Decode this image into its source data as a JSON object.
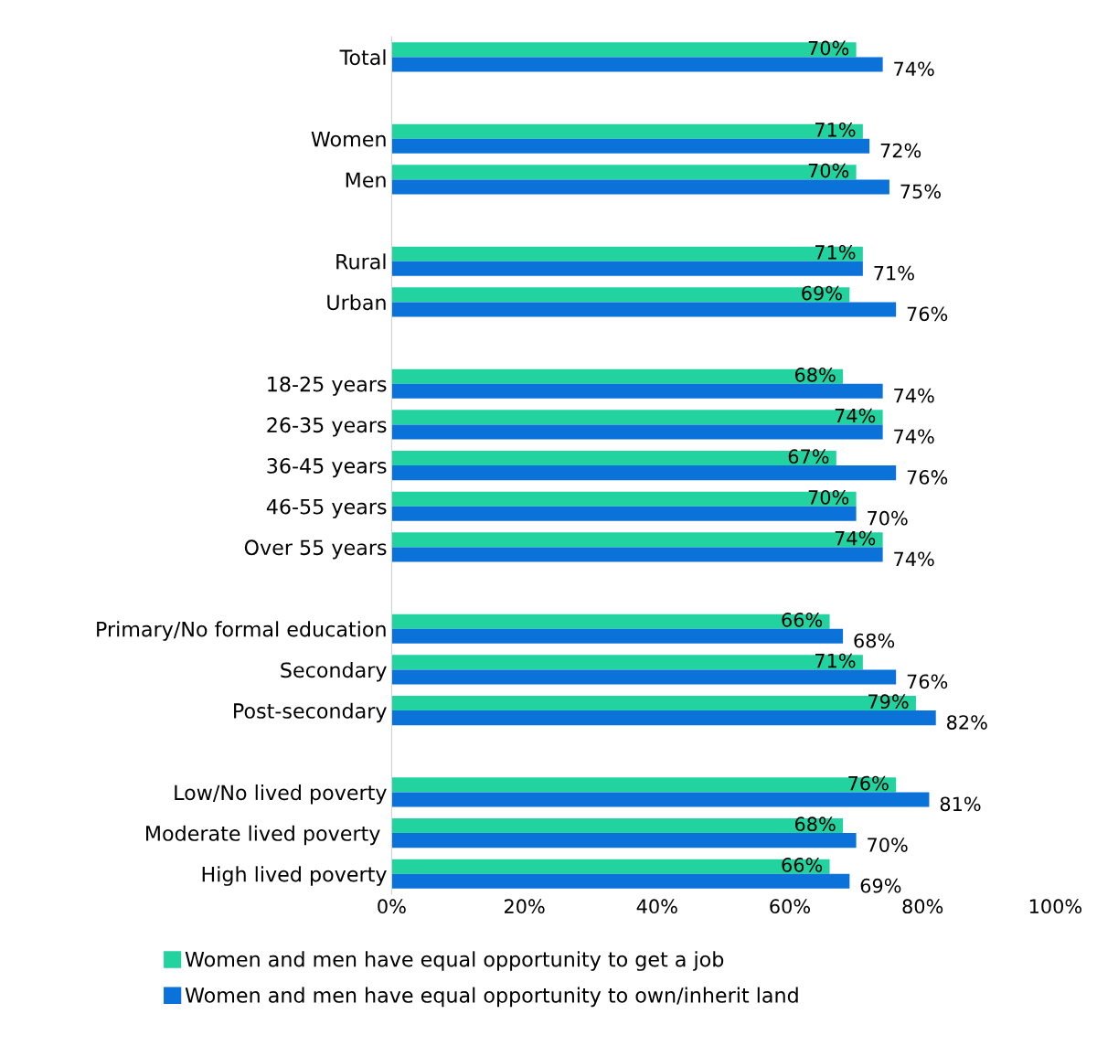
{
  "chart_data": {
    "type": "bar",
    "orientation": "horizontal",
    "categories": [
      "Total",
      null,
      "Women",
      "Men",
      null,
      "Rural",
      "Urban",
      null,
      "18-25 years",
      "26-35 years",
      "36-45 years",
      "46-55 years",
      "Over 55 years",
      null,
      "Primary/No formal education",
      "Secondary",
      "Post-secondary",
      null,
      "Low/No lived poverty",
      "Moderate lived poverty ",
      "High lived poverty"
    ],
    "series": [
      {
        "name": "Women and men have equal opportunity to get a job",
        "color": "#22d3a0",
        "values": [
          70,
          null,
          71,
          70,
          null,
          71,
          69,
          null,
          68,
          74,
          67,
          70,
          74,
          null,
          66,
          71,
          79,
          null,
          76,
          68,
          66
        ],
        "value_labels": [
          "70%",
          null,
          "71%",
          "70%",
          null,
          "71%",
          "69%",
          null,
          "68%",
          "74%",
          "67%",
          "70%",
          "74%",
          null,
          "66%",
          "71%",
          "79%",
          null,
          "76%",
          "68%",
          "66%"
        ]
      },
      {
        "name": "Women and men have equal opportunity to own/inherit land",
        "color": "#0a72d8",
        "values": [
          74,
          null,
          72,
          75,
          null,
          71,
          76,
          null,
          74,
          74,
          76,
          70,
          74,
          null,
          68,
          76,
          82,
          null,
          81,
          70,
          69
        ],
        "value_labels": [
          "74%",
          null,
          "72%",
          "75%",
          null,
          "71%",
          "76%",
          null,
          "74%",
          "74%",
          "76%",
          "70%",
          "74%",
          null,
          "68%",
          "76%",
          "82%",
          null,
          "81%",
          "70%",
          "69%"
        ]
      }
    ],
    "xlim": [
      0,
      100
    ],
    "xticks": [
      {
        "value": 0,
        "label": "0%"
      },
      {
        "value": 20,
        "label": "20%"
      },
      {
        "value": 40,
        "label": "40%"
      },
      {
        "value": 60,
        "label": "60%"
      },
      {
        "value": 80,
        "label": "80%"
      },
      {
        "value": 100,
        "label": "100%"
      }
    ],
    "grid": false,
    "legend": "bottom"
  }
}
